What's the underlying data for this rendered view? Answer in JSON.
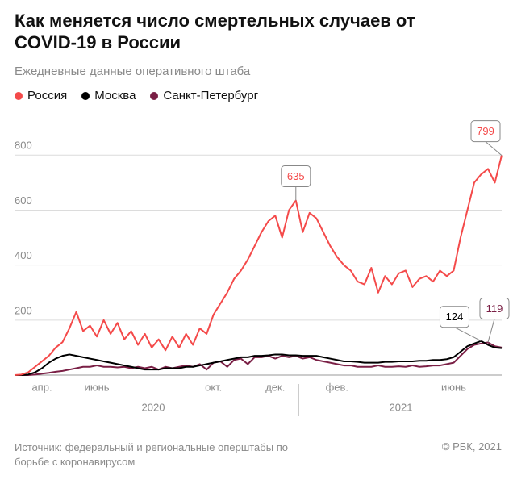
{
  "chart_data": {
    "type": "line",
    "title": "Как меняется число смертельных случаев от COVID-19 в России",
    "subtitle": "Ежедневные данные оперативного штаба",
    "source": "Источник: федеральный и региональные оперштабы по борьбе с коронавирусом",
    "copyright": "© РБК, 2021",
    "x_group_labels": [
      "2020",
      "2021"
    ],
    "categories": [
      null,
      null,
      null,
      null,
      "апр.",
      null,
      null,
      null,
      null,
      null,
      null,
      null,
      "июнь",
      null,
      null,
      null,
      null,
      null,
      null,
      null,
      null,
      null,
      null,
      null,
      null,
      null,
      null,
      null,
      null,
      "окт.",
      null,
      null,
      null,
      null,
      null,
      null,
      null,
      null,
      "дек.",
      null,
      null,
      null,
      null,
      null,
      null,
      null,
      null,
      "фев.",
      null,
      null,
      null,
      null,
      null,
      null,
      null,
      null,
      null,
      null,
      null,
      null,
      null,
      null,
      null,
      null,
      "июнь",
      null,
      null,
      null,
      null,
      null,
      null,
      null
    ],
    "series": [
      {
        "name": "Россия",
        "color": "#f44a4a",
        "values": [
          0,
          2,
          10,
          30,
          50,
          70,
          100,
          120,
          170,
          230,
          160,
          180,
          140,
          200,
          150,
          190,
          130,
          160,
          110,
          150,
          100,
          130,
          90,
          140,
          100,
          150,
          110,
          170,
          150,
          220,
          260,
          300,
          350,
          380,
          420,
          470,
          520,
          560,
          580,
          500,
          600,
          635,
          520,
          590,
          570,
          520,
          470,
          430,
          400,
          380,
          340,
          330,
          390,
          300,
          360,
          330,
          370,
          380,
          320,
          350,
          360,
          340,
          380,
          360,
          380,
          500,
          600,
          700,
          730,
          750,
          700,
          799
        ],
        "value_labels": [
          null,
          null,
          null,
          null,
          null,
          null,
          null,
          null,
          null,
          null,
          null,
          null,
          null,
          null,
          null,
          null,
          null,
          null,
          null,
          null,
          null,
          null,
          null,
          null,
          null,
          null,
          null,
          null,
          null,
          null,
          null,
          null,
          null,
          null,
          null,
          null,
          null,
          null,
          null,
          null,
          null,
          "635",
          null,
          null,
          null,
          null,
          null,
          null,
          null,
          null,
          null,
          null,
          null,
          null,
          null,
          null,
          null,
          null,
          null,
          null,
          null,
          null,
          null,
          null,
          null,
          null,
          null,
          null,
          null,
          null,
          null,
          "799"
        ]
      },
      {
        "name": "Москва",
        "color": "#000000",
        "values": [
          0,
          0,
          2,
          10,
          25,
          45,
          60,
          70,
          75,
          70,
          65,
          60,
          55,
          50,
          45,
          40,
          35,
          30,
          25,
          20,
          20,
          20,
          25,
          25,
          25,
          30,
          30,
          35,
          40,
          45,
          50,
          55,
          60,
          65,
          65,
          70,
          70,
          72,
          75,
          75,
          72,
          72,
          70,
          70,
          70,
          65,
          60,
          55,
          50,
          50,
          48,
          45,
          45,
          45,
          48,
          48,
          50,
          50,
          50,
          52,
          52,
          55,
          55,
          58,
          65,
          85,
          105,
          115,
          124,
          110,
          100,
          98
        ],
        "value_labels": [
          null,
          null,
          null,
          null,
          null,
          null,
          null,
          null,
          null,
          null,
          null,
          null,
          null,
          null,
          null,
          null,
          null,
          null,
          null,
          null,
          null,
          null,
          null,
          null,
          null,
          null,
          null,
          null,
          null,
          null,
          null,
          null,
          null,
          null,
          null,
          null,
          null,
          null,
          null,
          null,
          null,
          null,
          null,
          null,
          null,
          null,
          null,
          null,
          null,
          null,
          null,
          null,
          null,
          null,
          null,
          null,
          null,
          null,
          null,
          null,
          null,
          null,
          null,
          null,
          null,
          null,
          null,
          null,
          "124",
          null,
          null,
          null
        ]
      },
      {
        "name": "Санкт-Петербург",
        "color": "#7a1f45",
        "values": [
          0,
          0,
          0,
          2,
          5,
          8,
          12,
          15,
          20,
          25,
          30,
          30,
          35,
          30,
          30,
          28,
          30,
          25,
          30,
          25,
          30,
          20,
          30,
          25,
          30,
          35,
          30,
          40,
          20,
          45,
          50,
          30,
          55,
          60,
          40,
          65,
          65,
          70,
          60,
          70,
          65,
          70,
          60,
          65,
          55,
          50,
          45,
          40,
          35,
          35,
          30,
          30,
          30,
          35,
          30,
          30,
          32,
          30,
          35,
          30,
          32,
          35,
          35,
          40,
          45,
          70,
          95,
          110,
          115,
          119,
          105,
          100
        ],
        "value_labels": [
          null,
          null,
          null,
          null,
          null,
          null,
          null,
          null,
          null,
          null,
          null,
          null,
          null,
          null,
          null,
          null,
          null,
          null,
          null,
          null,
          null,
          null,
          null,
          null,
          null,
          null,
          null,
          null,
          null,
          null,
          null,
          null,
          null,
          null,
          null,
          null,
          null,
          null,
          null,
          null,
          null,
          null,
          null,
          null,
          null,
          null,
          null,
          null,
          null,
          null,
          null,
          null,
          null,
          null,
          null,
          null,
          null,
          null,
          null,
          null,
          null,
          null,
          null,
          null,
          null,
          null,
          null,
          null,
          null,
          "119",
          null,
          null
        ]
      }
    ],
    "ylim": [
      0,
      930
    ],
    "yticks": [
      200,
      400,
      600,
      800
    ],
    "grid": true
  }
}
